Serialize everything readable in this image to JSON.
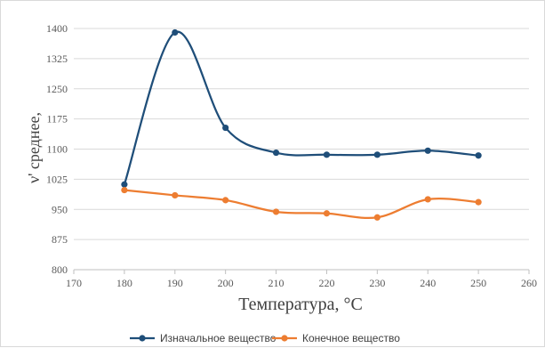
{
  "chart_data": {
    "type": "line",
    "xlabel": "Температура, °C",
    "ylabel": "ν' среднее,",
    "xlim": [
      170,
      260
    ],
    "ylim": [
      800,
      1400
    ],
    "x_ticks": [
      "170",
      "180",
      "190",
      "200",
      "210",
      "220",
      "230",
      "240",
      "250",
      "260"
    ],
    "y_ticks": [
      "800",
      "875",
      "950",
      "1025",
      "1100",
      "1175",
      "1250",
      "1325",
      "1400"
    ],
    "grid": "horizontal",
    "legend_position": "bottom",
    "x": [
      180,
      190,
      200,
      210,
      220,
      230,
      240,
      250
    ],
    "series": [
      {
        "name": "Изначальное вещество",
        "color": "#1f4e79",
        "values": [
          1012,
          1390,
          1153,
          1091,
          1086,
          1086,
          1096,
          1084
        ]
      },
      {
        "name": "Конечное вещество",
        "color": "#ed7d31",
        "values": [
          998,
          985,
          973,
          944,
          940,
          930,
          975,
          968
        ]
      }
    ]
  }
}
